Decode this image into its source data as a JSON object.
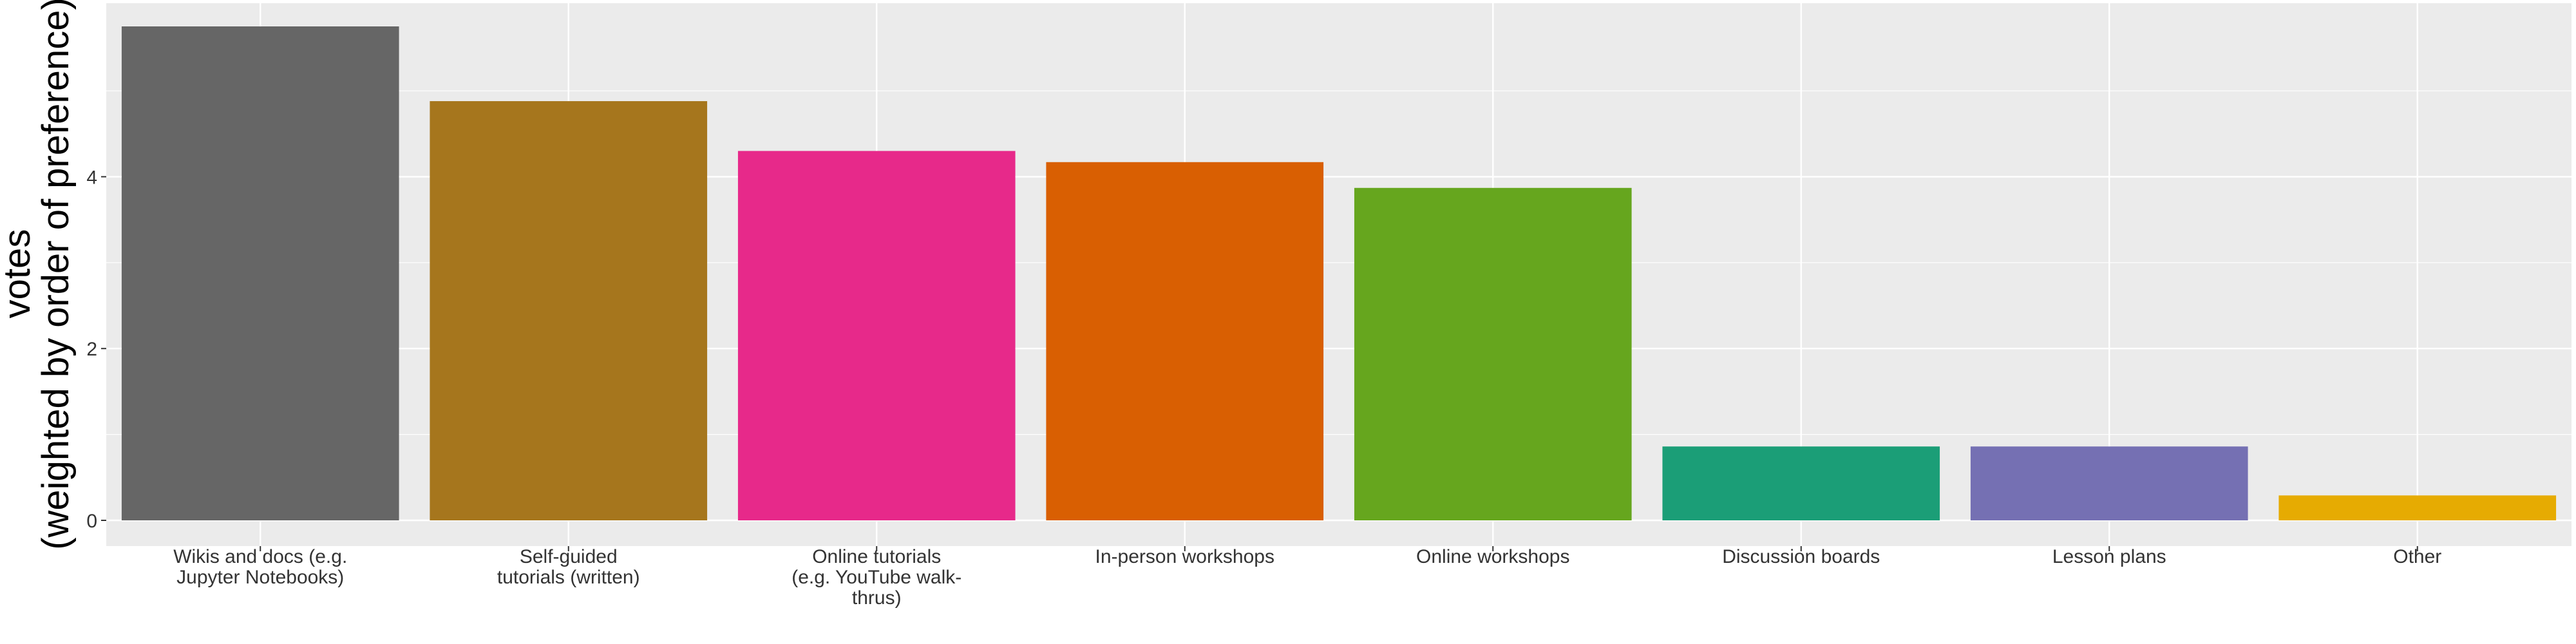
{
  "chart_data": {
    "type": "bar",
    "ylabel_lines": [
      "votes",
      "(weighted by order of preference)"
    ],
    "xlabel": "",
    "ylim": [
      0,
      5.9
    ],
    "y_ticks": [
      0,
      2,
      4
    ],
    "grid": true,
    "legend": "none",
    "categories": [
      {
        "lines": [
          "Wikis and docs (e.g.",
          "Jupyter Notebooks)"
        ]
      },
      {
        "lines": [
          "Self-guided",
          "tutorials (written)"
        ]
      },
      {
        "lines": [
          "Online tutorials",
          "(e.g. YouTube walk-",
          "thrus)"
        ]
      },
      {
        "lines": [
          "In-person workshops"
        ]
      },
      {
        "lines": [
          "Online workshops"
        ]
      },
      {
        "lines": [
          "Discussion boards"
        ]
      },
      {
        "lines": [
          "Lesson plans"
        ]
      },
      {
        "lines": [
          "Other"
        ]
      }
    ],
    "values": [
      5.75,
      4.88,
      4.3,
      4.17,
      3.87,
      0.86,
      0.86,
      0.29
    ],
    "colors": [
      "#666666",
      "#A6761D",
      "#E7298A",
      "#D95F02",
      "#66A61E",
      "#1B9E77",
      "#7570B3",
      "#E6AB02"
    ],
    "panel_color": "#EBEBEB",
    "grid_color": "#FFFFFF"
  }
}
